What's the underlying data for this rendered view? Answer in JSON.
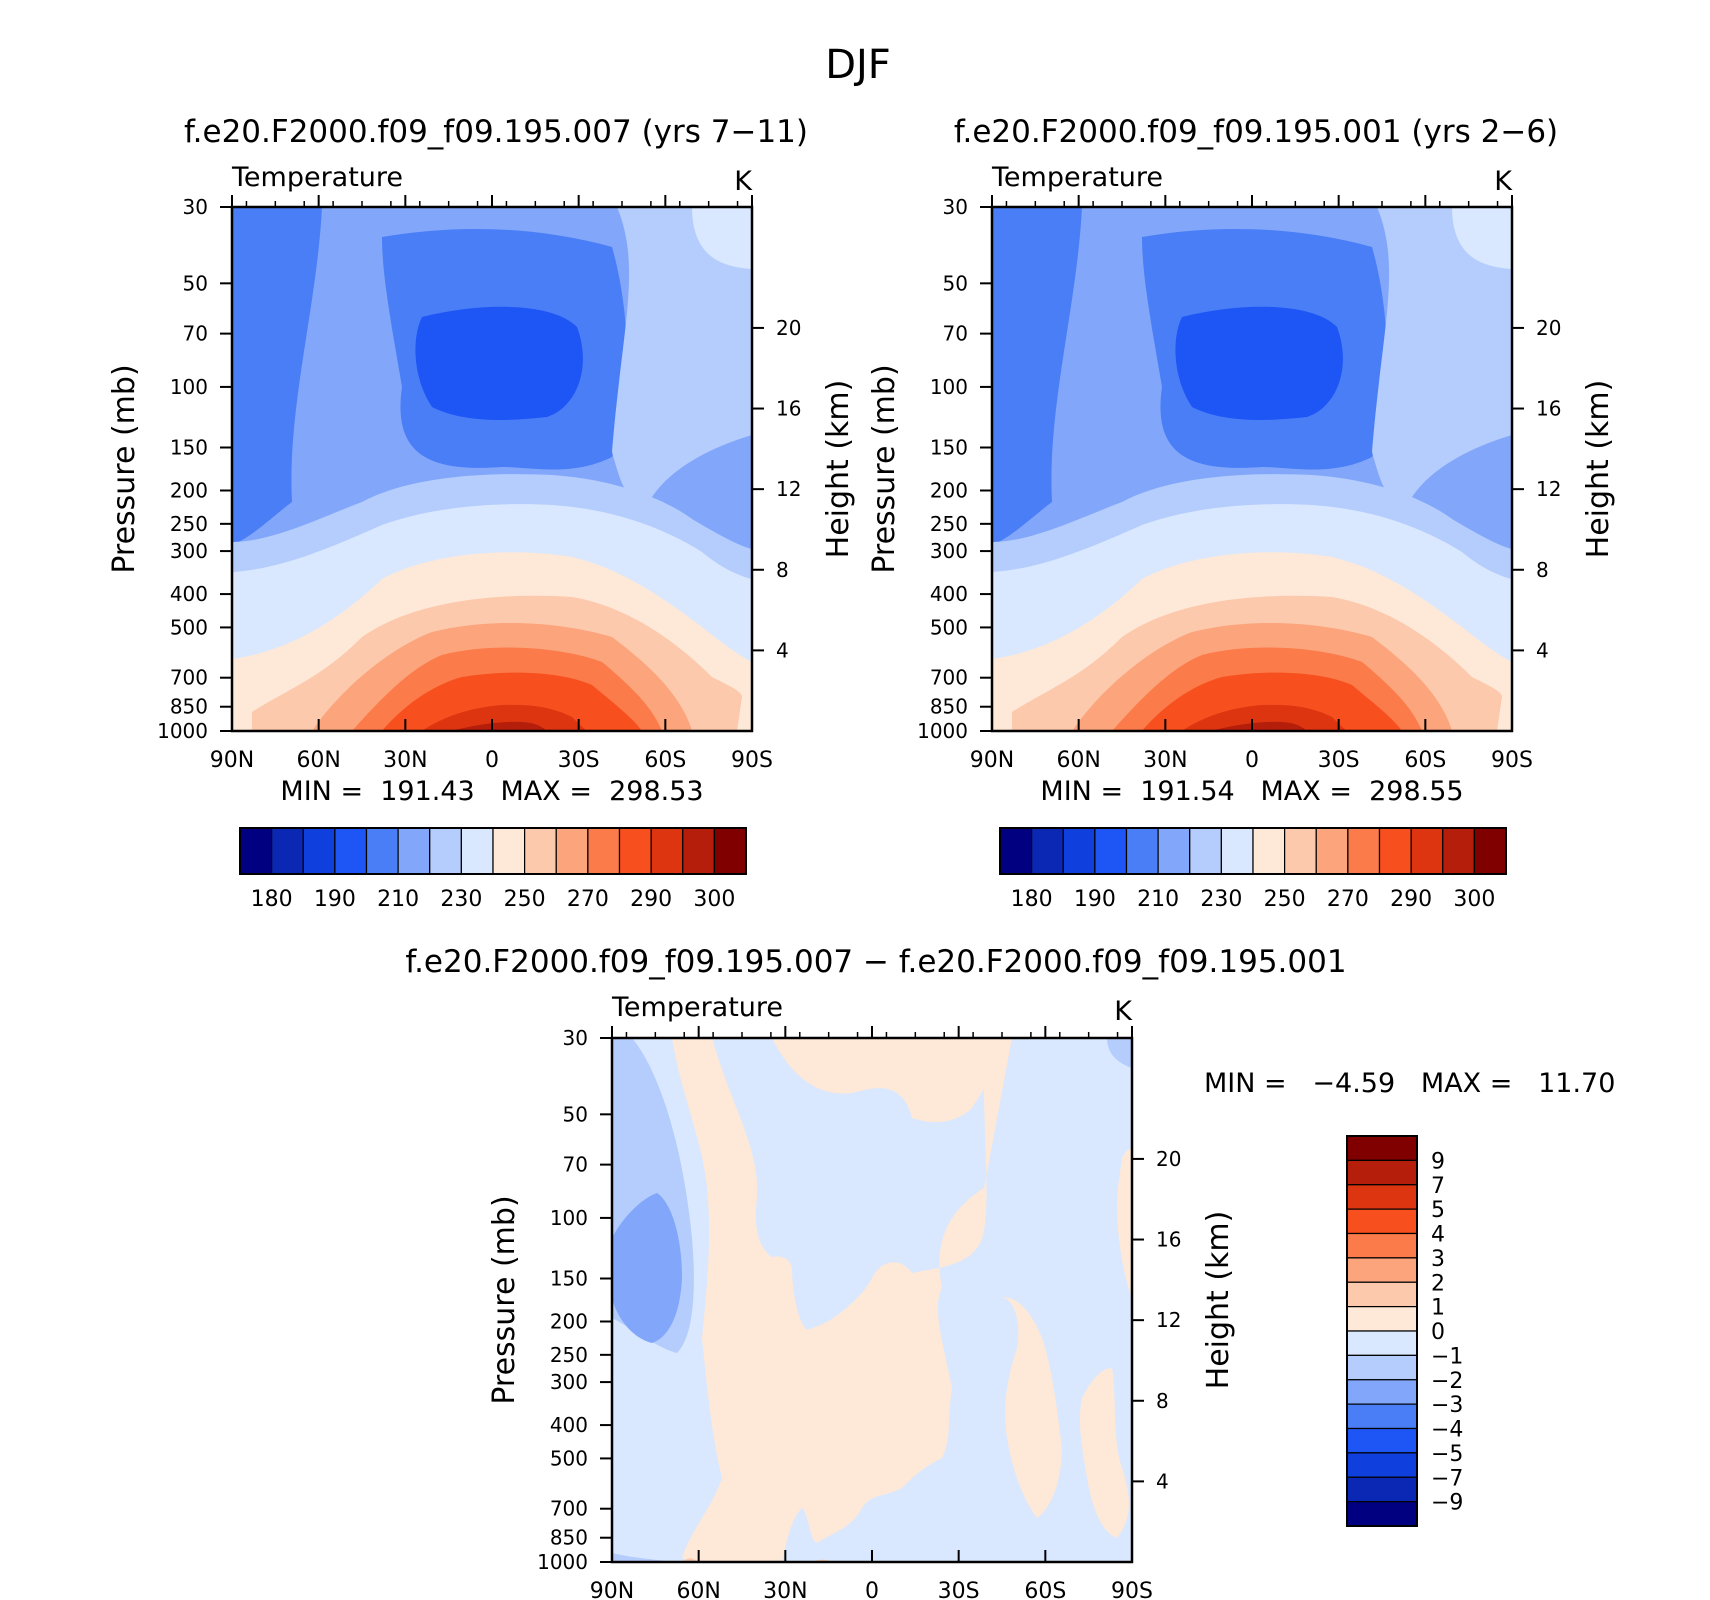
{
  "figure": {
    "season": "DJF",
    "diff_minmax": "MIN =   −4.59   MAX =   11.70",
    "colorbar_main_colors": [
      "#000080",
      "#0a28b4",
      "#0f3fdc",
      "#1e55f5",
      "#4a7ef7",
      "#82a7fa",
      "#b5cdfc",
      "#d9e8fe",
      "#fee8d8",
      "#fdc9ac",
      "#fca47c",
      "#fb7b4a",
      "#f84f1e",
      "#dc3510",
      "#b41e0a",
      "#800000"
    ],
    "colorbar_main_ticks": [
      "180",
      "190",
      "210",
      "230",
      "250",
      "270",
      "290",
      "300"
    ],
    "colorbar_diff_colors": [
      "#800000",
      "#b41e0a",
      "#dc3510",
      "#f84f1e",
      "#fb7b4a",
      "#fca47c",
      "#fdc9ac",
      "#fee8d8",
      "#d9e8fe",
      "#b5cdfc",
      "#82a7fa",
      "#4a7ef7",
      "#1e55f5",
      "#0f3fdc",
      "#0a28b4",
      "#000080"
    ],
    "colorbar_diff_ticks": [
      "9",
      "7",
      "5",
      "4",
      "3",
      "2",
      "1",
      "0",
      "−1",
      "−2",
      "−3",
      "−4",
      "−5",
      "−7",
      "−9"
    ]
  },
  "chart_data": [
    {
      "type": "heatmap",
      "title": "f.e20.F2000.f09_f09.195.007 (yrs 7−11)",
      "variable": "Temperature",
      "units": "K",
      "xlabel": "",
      "ylabel": "Pressure (mb)",
      "ylabel_right": "Height (km)",
      "x_ticks": [
        "90N",
        "60N",
        "30N",
        "0",
        "30S",
        "60S",
        "90S"
      ],
      "y_ticks": [
        "30",
        "50",
        "70",
        "100",
        "150",
        "200",
        "250",
        "300",
        "400",
        "500",
        "700",
        "850",
        "1000"
      ],
      "y_right_ticks": [
        "20",
        "16",
        "12",
        "8",
        "4"
      ],
      "y_log": true,
      "ylim": [
        1000,
        30
      ],
      "minmax": "MIN =  191.43   MAX =  298.53",
      "min": 191.43,
      "max": 298.53
    },
    {
      "type": "heatmap",
      "title": "f.e20.F2000.f09_f09.195.001 (yrs 2−6)",
      "variable": "Temperature",
      "units": "K",
      "xlabel": "",
      "ylabel": "Pressure (mb)",
      "ylabel_right": "Height (km)",
      "x_ticks": [
        "90N",
        "60N",
        "30N",
        "0",
        "30S",
        "60S",
        "90S"
      ],
      "y_ticks": [
        "30",
        "50",
        "70",
        "100",
        "150",
        "200",
        "250",
        "300",
        "400",
        "500",
        "700",
        "850",
        "1000"
      ],
      "y_right_ticks": [
        "20",
        "16",
        "12",
        "8",
        "4"
      ],
      "y_log": true,
      "ylim": [
        1000,
        30
      ],
      "minmax": "MIN =  191.54   MAX =  298.55",
      "min": 191.54,
      "max": 298.55
    },
    {
      "type": "heatmap",
      "title": "f.e20.F2000.f09_f09.195.007 − f.e20.F2000.f09_f09.195.001",
      "variable": "Temperature",
      "units": "K",
      "xlabel": "",
      "ylabel": "Pressure (mb)",
      "ylabel_right": "Height (km)",
      "x_ticks": [
        "90N",
        "60N",
        "30N",
        "0",
        "30S",
        "60S",
        "90S"
      ],
      "y_ticks": [
        "30",
        "50",
        "70",
        "100",
        "150",
        "200",
        "250",
        "300",
        "400",
        "500",
        "700",
        "850",
        "1000"
      ],
      "y_right_ticks": [
        "20",
        "16",
        "12",
        "8",
        "4"
      ],
      "y_log": true,
      "ylim": [
        1000,
        30
      ],
      "min": -4.59,
      "max": 11.7
    }
  ]
}
